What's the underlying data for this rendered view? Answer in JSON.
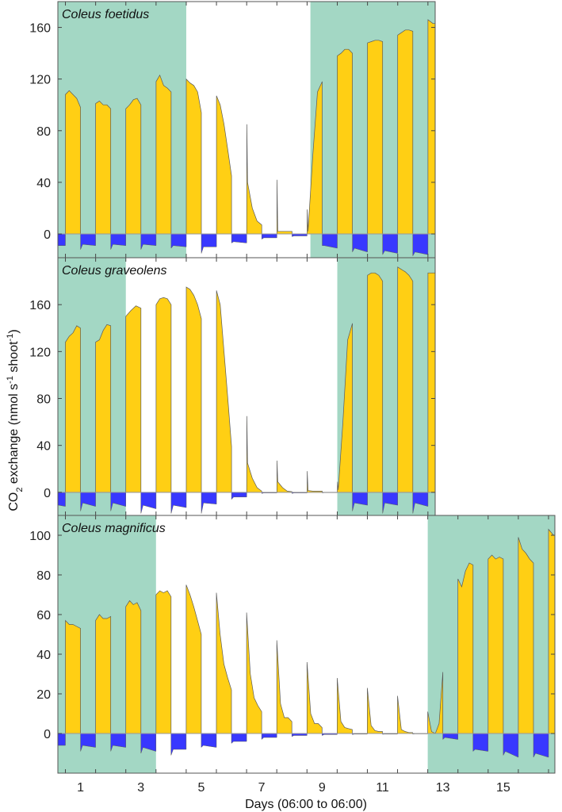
{
  "chart_data": {
    "type": "area",
    "xlabel": "Days (06:00 to 06:00)",
    "ylabel_parts": {
      "a": "CO",
      "sub": "2",
      "b": " exchange (nmol s",
      "sup1": "-1",
      "c": " shoot",
      "sup2": "-1",
      "d": ")"
    },
    "colors": {
      "shade": "#a3d7c4",
      "light": "#ffcf14",
      "dark": "#3838ff",
      "edge": "#5a5a5a"
    },
    "x_ticks": [
      "1",
      "3",
      "5",
      "7",
      "9",
      "11",
      "13",
      "15"
    ],
    "panels": [
      {
        "title": "Coleus foetidus",
        "xlim": [
          0.25,
          12.74
        ],
        "ylim": [
          -18.4,
          180
        ],
        "y_ticks": [
          "0",
          "40",
          "80",
          "120",
          "160"
        ],
        "shaded_ranges_days": [
          [
            0.25,
            4.5
          ],
          [
            8.61,
            12.74
          ]
        ],
        "days": [
          {
            "night": [
              -9,
              -9,
              -9
            ]
          },
          {
            "light": [
              108,
              111,
              108,
              105,
              98
            ],
            "night": [
              -12,
              -8,
              -9
            ]
          },
          {
            "light": [
              101,
              103,
              100,
              100,
              97
            ],
            "night": [
              -12,
              -8,
              -9
            ]
          },
          {
            "light": [
              97,
              100,
              104,
              105,
              100
            ],
            "night": [
              -12,
              -8,
              -9
            ]
          },
          {
            "light": [
              118,
              123,
              115,
              113,
              110
            ],
            "night": [
              -11,
              -9,
              -10
            ]
          },
          {
            "light": [
              120,
              117,
              115,
              110,
              94
            ],
            "night": [
              -15,
              -10,
              -10
            ]
          },
          {
            "light": [
              107,
              100,
              85,
              65,
              45
            ],
            "night": [
              -7,
              -6,
              -7
            ]
          },
          {
            "spike": 85,
            "light": [
              40,
              20,
              10,
              7
            ],
            "night": [
              -4,
              -3,
              -3
            ]
          },
          {
            "spike": 42,
            "light": [
              2,
              2,
              2,
              2
            ],
            "night": [
              -2,
              -1.5,
              -1.5
            ]
          },
          {
            "spike": 19,
            "light": [
              2,
              60,
              110,
              118
            ],
            "night": [
              -9,
              -9,
              -11
            ]
          },
          {
            "light": [
              138,
              140,
              143,
              143,
              140
            ],
            "night": [
              -14,
              -11,
              -14
            ]
          },
          {
            "light": [
              148,
              149,
              150,
              150,
              149
            ],
            "night": [
              -16,
              -13,
              -15
            ]
          },
          {
            "light": [
              154,
              156,
              158,
              158,
              157
            ],
            "night": [
              -17,
              -14,
              -16
            ]
          },
          {
            "light": [
              166,
              163,
              163,
              163
            ]
          }
        ]
      },
      {
        "title": "Coleus graveolens",
        "xlim": [
          0.25,
          12.74
        ],
        "ylim": [
          -19.7,
          200
        ],
        "y_ticks": [
          "0",
          "40",
          "80",
          "120",
          "160"
        ],
        "shaded_ranges_days": [
          [
            0.25,
            2.5
          ],
          [
            9.5,
            12.74
          ]
        ],
        "days": [
          {
            "night": [
              -8,
              -10,
              -12
            ]
          },
          {
            "light": [
              128,
              133,
              136,
              142,
              140
            ],
            "night": [
              -16,
              -9,
              -12
            ]
          },
          {
            "light": [
              128,
              130,
              138,
              143,
              142
            ],
            "night": [
              -16,
              -9,
              -12
            ]
          },
          {
            "light": [
              150,
              155,
              159,
              157
            ],
            "night": [
              -18,
              -11,
              -14
            ]
          },
          {
            "light": [
              160,
              165,
              166,
              165,
              160
            ],
            "night": [
              -18,
              -11,
              -13
            ]
          },
          {
            "light": [
              175,
              173,
              168,
              160,
              148
            ],
            "night": [
              -18,
              -9,
              -10
            ]
          },
          {
            "light": [
              172,
              160,
              120,
              80,
              39
            ],
            "night": [
              -6,
              -4,
              -4
            ]
          },
          {
            "spike": 65,
            "light": [
              25,
              12,
              4,
              1
            ],
            "night": [
              -1,
              -0.5,
              -0.5
            ]
          },
          {
            "spike": 27,
            "light": [
              9,
              4,
              1,
              0.5
            ],
            "night": [
              -1,
              -0.5,
              -0.5
            ]
          },
          {
            "spike": 18,
            "light": [
              1.5,
              1,
              1,
              1
            ],
            "night": [
              -0.5,
              -0.3,
              -0.3
            ]
          },
          {
            "spike": 9,
            "light": [
              2,
              60,
              130,
              144
            ],
            "night": [
              -16,
              -9,
              -11
            ]
          },
          {
            "light": [
              185,
              187,
              187,
              185,
              180
            ],
            "night": [
              -18,
              -9,
              -11
            ]
          },
          {
            "light": [
              192,
              190,
              188,
              185,
              180
            ],
            "night": [
              -18,
              -9,
              -12
            ]
          },
          {
            "light": [
              187,
              187,
              187,
              187
            ]
          }
        ]
      },
      {
        "title": "Coleus magnificus",
        "xlim": [
          0.25,
          16.71
        ],
        "ylim": [
          -20,
          110
        ],
        "y_ticks": [
          "0",
          "20",
          "40",
          "60",
          "80",
          "100"
        ],
        "shaded_ranges_days": [
          [
            0.25,
            3.5
          ],
          [
            12.5,
            16.71
          ]
        ],
        "days": [
          {
            "night": [
              -5,
              -6,
              -6
            ]
          },
          {
            "light": [
              57,
              55,
              55,
              54,
              53
            ],
            "night": [
              -9,
              -6,
              -7
            ]
          },
          {
            "light": [
              57,
              60,
              58,
              58,
              59
            ],
            "night": [
              -9,
              -6,
              -7
            ]
          },
          {
            "light": [
              64,
              67,
              65,
              66,
              62
            ],
            "night": [
              -10,
              -7,
              -9
            ]
          },
          {
            "light": [
              70,
              72,
              71,
              72,
              69
            ],
            "night": [
              -11,
              -8,
              -8
            ]
          },
          {
            "light": [
              75,
              70,
              64,
              57,
              50
            ],
            "night": [
              -7,
              -6,
              -7
            ]
          },
          {
            "light": [
              71,
              50,
              35,
              28,
              22
            ],
            "night": [
              -5,
              -4,
              -4
            ]
          },
          {
            "light": [
              61,
              30,
              18,
              14,
              11
            ],
            "night": [
              -3,
              -2,
              -2
            ]
          },
          {
            "light": [
              47,
              15,
              8,
              8,
              6
            ],
            "night": [
              -1.5,
              -1,
              -1
            ]
          },
          {
            "light": [
              36,
              10,
              5,
              5,
              3
            ],
            "night": [
              -1,
              -0.5,
              -0.5
            ]
          },
          {
            "light": [
              28,
              6,
              3,
              2.5,
              2
            ],
            "night": [
              -0.5,
              -0.3,
              -0.3
            ]
          },
          {
            "light": [
              23,
              4,
              1.5,
              1,
              1
            ],
            "night": [
              -0.4,
              -0.3,
              -0.3
            ]
          },
          {
            "light": [
              19,
              2,
              1,
              0.5,
              0.5
            ],
            "night": [
              -0.3,
              -0.2,
              -0.2
            ]
          },
          {
            "light": [
              11,
              1,
              0,
              5,
              31
            ],
            "night": [
              -3,
              -2,
              -3
            ]
          },
          {
            "light": [
              78,
              74,
              82,
              86,
              85
            ],
            "night": [
              -9,
              -8,
              -9
            ]
          },
          {
            "light": [
              88,
              90,
              88,
              89,
              88
            ],
            "night": [
              -11,
              -9,
              -12
            ]
          },
          {
            "light": [
              99,
              93,
              91,
              88,
              86
            ],
            "night": [
              -12,
              -10,
              -12
            ]
          },
          {
            "light": [
              103,
              100,
              100,
              100
            ]
          }
        ]
      }
    ]
  }
}
